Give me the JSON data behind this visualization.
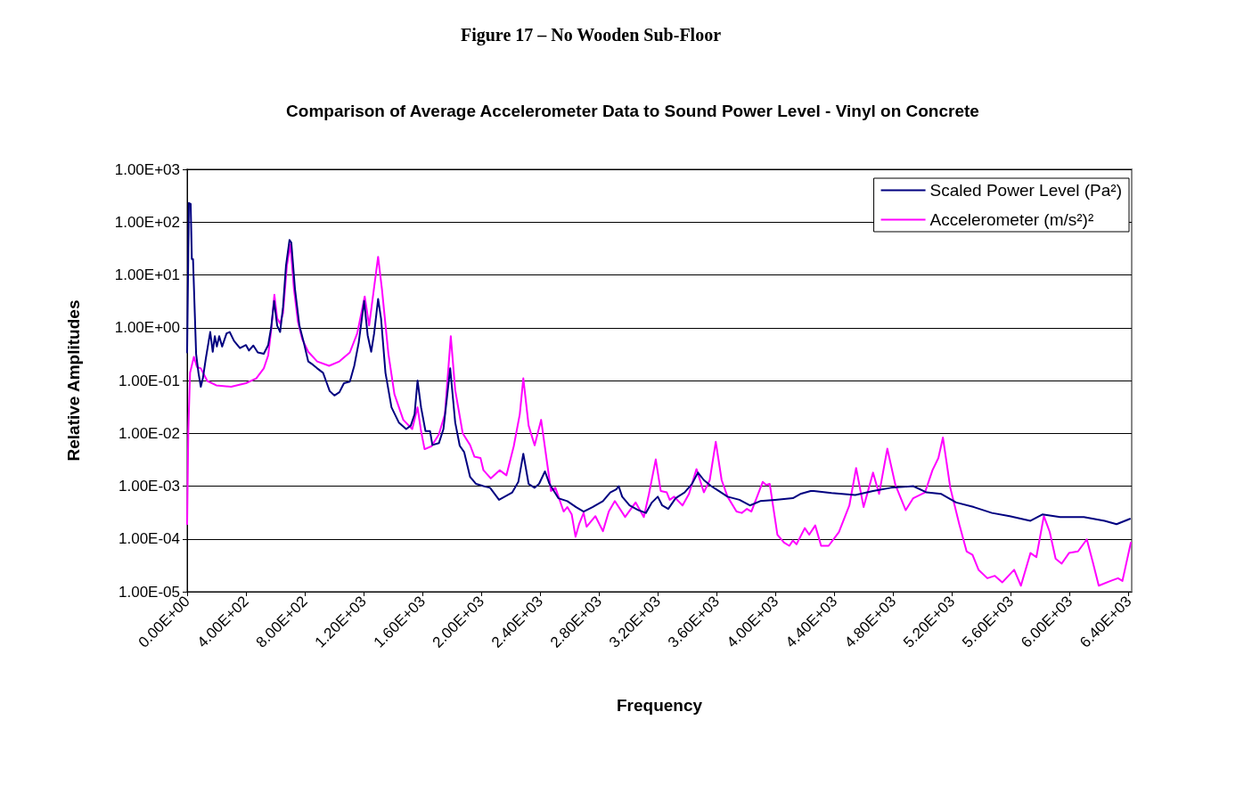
{
  "chart_data": {
    "type": "line",
    "title": "Figure 17 – No Wooden Sub-Floor",
    "subtitle": "Comparison of Average Accelerometer Data to Sound Power Level - Vinyl on Concrete",
    "xlabel": "Frequency",
    "ylabel": "Relative Amplitudes",
    "log": "y",
    "grid": "y",
    "legend": "top right",
    "marker": "none",
    "line_style": "solid",
    "xlim": [
      0,
      6420
    ],
    "xticks": [
      {
        "value": 0,
        "label": "0.00E+00"
      },
      {
        "value": 400,
        "label": "4.00E+02"
      },
      {
        "value": 800,
        "label": "8.00E+02"
      },
      {
        "value": 1200,
        "label": "1.20E+03"
      },
      {
        "value": 1600,
        "label": "1.60E+03"
      },
      {
        "value": 2000,
        "label": "2.00E+03"
      },
      {
        "value": 2400,
        "label": "2.40E+03"
      },
      {
        "value": 2800,
        "label": "2.80E+03"
      },
      {
        "value": 3200,
        "label": "3.20E+03"
      },
      {
        "value": 3600,
        "label": "3.60E+03"
      },
      {
        "value": 4000,
        "label": "4.00E+03"
      },
      {
        "value": 4400,
        "label": "4.40E+03"
      },
      {
        "value": 4800,
        "label": "4.80E+03"
      },
      {
        "value": 5200,
        "label": "5.20E+03"
      },
      {
        "value": 5600,
        "label": "5.60E+03"
      },
      {
        "value": 6000,
        "label": "6.00E+03"
      },
      {
        "value": 6400,
        "label": "6.40E+03"
      }
    ],
    "ylim": [
      1e-05,
      1000
    ],
    "yticks": [
      {
        "value": 1e-05,
        "label": "1.00E-05"
      },
      {
        "value": 0.0001,
        "label": "1.00E-04"
      },
      {
        "value": 0.001,
        "label": "1.00E-03"
      },
      {
        "value": 0.01,
        "label": "1.00E-02"
      },
      {
        "value": 0.1,
        "label": "1.00E-01"
      },
      {
        "value": 1,
        "label": "1.00E+00"
      },
      {
        "value": 10,
        "label": "1.00E+01"
      },
      {
        "value": 100,
        "label": "1.00E+02"
      },
      {
        "value": 1000,
        "label": "1.00E+03"
      }
    ],
    "series": [
      {
        "name": "Scaled Power Level (Pa²)",
        "color": "#000080",
        "x": [
          0,
          12,
          24,
          32,
          40,
          52,
          61,
          77,
          93,
          107,
          127,
          157,
          174,
          188,
          202,
          218,
          238,
          268,
          289,
          319,
          359,
          400,
          420,
          450,
          480,
          521,
          551,
          571,
          591,
          612,
          632,
          652,
          672,
          696,
          708,
          733,
          763,
          793,
          823,
          854,
          884,
          924,
          944,
          969,
          1001,
          1035,
          1066,
          1106,
          1136,
          1166,
          1203,
          1227,
          1251,
          1271,
          1298,
          1318,
          1348,
          1389,
          1439,
          1489,
          1520,
          1546,
          1566,
          1590,
          1620,
          1651,
          1667,
          1711,
          1742,
          1788,
          1822,
          1853,
          1883,
          1923,
          1964,
          2014,
          2059,
          2120,
          2210,
          2251,
          2285,
          2321,
          2362,
          2392,
          2432,
          2463,
          2523,
          2584,
          2644,
          2695,
          2755,
          2826,
          2876,
          2917,
          2933,
          2957,
          3007,
          3068,
          3118,
          3159,
          3199,
          3229,
          3270,
          3320,
          3381,
          3431,
          3472,
          3512,
          3562,
          3613,
          3673,
          3754,
          3825,
          3895,
          3996,
          4117,
          4168,
          4238,
          4259,
          4380,
          4541,
          4662,
          4783,
          4935,
          5026,
          5126,
          5227,
          5348,
          5470,
          5591,
          5732,
          5813,
          5934,
          6095,
          6236,
          6317,
          6408
        ],
        "values": [
          0.34,
          230,
          220,
          20,
          20,
          1.9,
          0.32,
          0.14,
          0.076,
          0.11,
          0.26,
          0.83,
          0.35,
          0.69,
          0.44,
          0.69,
          0.44,
          0.78,
          0.83,
          0.56,
          0.41,
          0.47,
          0.37,
          0.46,
          0.34,
          0.32,
          0.47,
          1.0,
          3.2,
          1.1,
          0.83,
          2.5,
          15,
          46,
          41,
          5.4,
          1.1,
          0.52,
          0.23,
          0.2,
          0.17,
          0.14,
          0.098,
          0.063,
          0.052,
          0.06,
          0.089,
          0.095,
          0.19,
          0.52,
          3.2,
          0.72,
          0.35,
          0.78,
          3.5,
          1.5,
          0.14,
          0.031,
          0.016,
          0.012,
          0.014,
          0.023,
          0.1,
          0.031,
          0.011,
          0.011,
          0.006,
          0.0065,
          0.012,
          0.17,
          0.016,
          0.0058,
          0.0044,
          0.0015,
          0.0011,
          0.001,
          0.00093,
          0.00055,
          0.00076,
          0.0012,
          0.0041,
          0.0011,
          0.00093,
          0.0011,
          0.0019,
          0.0011,
          0.00059,
          0.00052,
          0.0004,
          0.00033,
          0.0004,
          0.00052,
          0.00076,
          0.00087,
          0.001,
          0.00063,
          0.00043,
          0.00035,
          0.00031,
          0.00049,
          0.00063,
          0.00043,
          0.00037,
          0.00059,
          0.00076,
          0.0011,
          0.0018,
          0.0013,
          0.001,
          0.00081,
          0.00063,
          0.00055,
          0.00043,
          0.00052,
          0.00055,
          0.00059,
          0.00071,
          0.00081,
          0.00081,
          0.00074,
          0.00068,
          0.00081,
          0.00093,
          0.001,
          0.00076,
          0.00071,
          0.00049,
          0.0004,
          0.00031,
          0.00027,
          0.00022,
          0.00029,
          0.00026,
          0.00026,
          0.00022,
          0.00019,
          0.00024
        ]
      },
      {
        "name": "Accelerometer (m/s²)²",
        "color": "#ff00ff",
        "x": [
          0,
          8,
          20,
          46,
          67,
          93,
          137,
          198,
          299,
          400,
          470,
          521,
          551,
          571,
          593,
          612,
          632,
          652,
          678,
          702,
          726,
          753,
          783,
          823,
          884,
          965,
          1035,
          1106,
          1156,
          1207,
          1237,
          1267,
          1298,
          1324,
          1368,
          1409,
          1469,
          1530,
          1566,
          1590,
          1614,
          1661,
          1711,
          1752,
          1792,
          1822,
          1873,
          1923,
          1953,
          1994,
          2014,
          2064,
          2124,
          2170,
          2220,
          2261,
          2285,
          2321,
          2362,
          2406,
          2442,
          2473,
          2503,
          2559,
          2584,
          2614,
          2640,
          2664,
          2695,
          2715,
          2775,
          2826,
          2866,
          2907,
          2977,
          3048,
          3104,
          3139,
          3185,
          3219,
          3260,
          3280,
          3310,
          3367,
          3411,
          3462,
          3512,
          3552,
          3593,
          3633,
          3673,
          3734,
          3770,
          3805,
          3835,
          3912,
          3936,
          3960,
          4012,
          4057,
          4093,
          4117,
          4142,
          4198,
          4228,
          4269,
          4309,
          4360,
          4430,
          4501,
          4547,
          4598,
          4662,
          4703,
          4759,
          4814,
          4884,
          4935,
          5015,
          5066,
          5106,
          5137,
          5187,
          5248,
          5298,
          5338,
          5379,
          5439,
          5490,
          5540,
          5621,
          5667,
          5732,
          5772,
          5823,
          5863,
          5903,
          5944,
          5994,
          6055,
          6115,
          6156,
          6196,
          6277,
          6327,
          6357,
          6414
        ],
        "values": [
          0.00019,
          0.011,
          0.14,
          0.28,
          0.18,
          0.17,
          0.098,
          0.081,
          0.076,
          0.089,
          0.11,
          0.17,
          0.3,
          0.89,
          4.2,
          1.5,
          1.2,
          1.9,
          15,
          38,
          5.4,
          1.3,
          0.6,
          0.35,
          0.23,
          0.19,
          0.23,
          0.34,
          0.78,
          3.9,
          1.1,
          4.8,
          22,
          5.4,
          0.32,
          0.055,
          0.018,
          0.012,
          0.031,
          0.011,
          0.005,
          0.0057,
          0.0095,
          0.023,
          0.69,
          0.066,
          0.01,
          0.006,
          0.0036,
          0.0034,
          0.002,
          0.0014,
          0.002,
          0.0016,
          0.0057,
          0.023,
          0.11,
          0.014,
          0.0059,
          0.018,
          0.0034,
          0.00081,
          0.00093,
          0.00033,
          0.0004,
          0.00029,
          0.00011,
          0.00019,
          0.00031,
          0.00017,
          0.00027,
          0.00014,
          0.00033,
          0.00052,
          0.00026,
          0.00049,
          0.00026,
          0.00071,
          0.0032,
          0.00081,
          0.00076,
          0.00055,
          0.00063,
          0.00043,
          0.00071,
          0.0021,
          0.00076,
          0.0013,
          0.0069,
          0.0013,
          0.00063,
          0.00033,
          0.00031,
          0.00037,
          0.00033,
          0.0012,
          0.00105,
          0.0011,
          0.00012,
          8.5e-05,
          7.4e-05,
          9.3e-05,
          7.9e-05,
          0.00016,
          0.00012,
          0.00018,
          7.4e-05,
          7.4e-05,
          0.000135,
          0.00043,
          0.0022,
          0.0004,
          0.0018,
          0.00071,
          0.0051,
          0.00105,
          0.00035,
          0.00059,
          0.00076,
          0.002,
          0.0034,
          0.0083,
          0.00093,
          0.00019,
          5.8e-05,
          5e-05,
          2.6e-05,
          1.8e-05,
          2e-05,
          1.5e-05,
          2.6e-05,
          1.3e-05,
          5.4e-05,
          4.5e-05,
          0.00027,
          0.000135,
          4.2e-05,
          3.4e-05,
          5.4e-05,
          5.8e-05,
          9.8e-05,
          3.6e-05,
          1.3e-05,
          1.6e-05,
          1.8e-05,
          1.6e-05,
          8.5e-05
        ]
      }
    ]
  }
}
